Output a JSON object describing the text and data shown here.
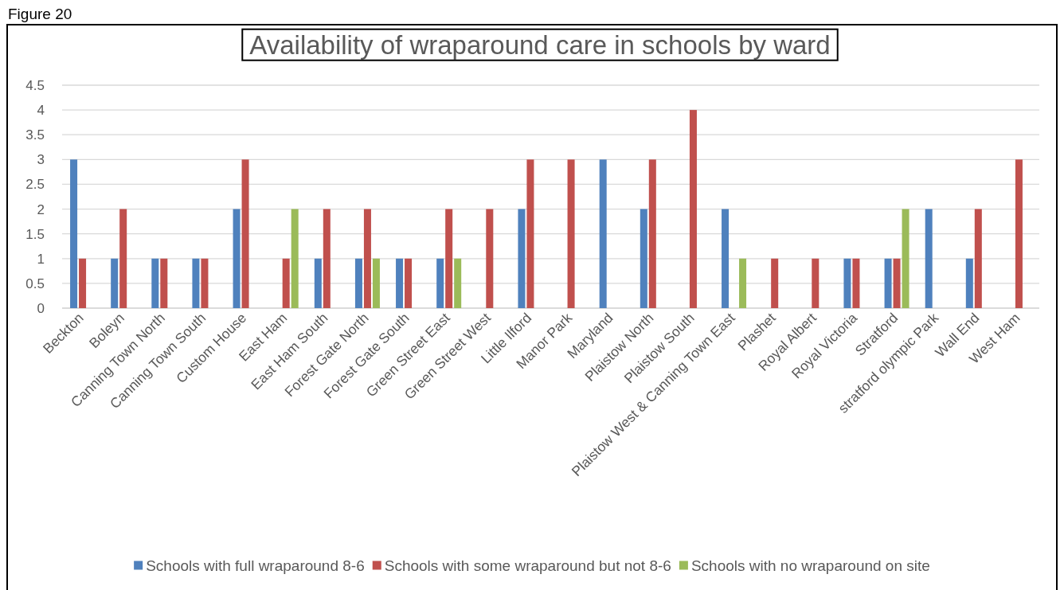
{
  "chart_data": {
    "type": "bar",
    "title": "Availability of wraparound care in schools by ward",
    "annotations": [
      "Figure 20"
    ],
    "categories": [
      "Beckton",
      "Boleyn",
      "Canning Town North",
      "Canning Town South",
      "Custom House",
      "East Ham",
      "East Ham South",
      "Forest Gate North",
      "Forest Gate South",
      "Green Street East",
      "Green Street West",
      "Little Ilford",
      "Manor Park",
      "Maryland",
      "Plaistow North",
      "Plaistow South",
      "Plaistow West & Canning Town East",
      "Plashet",
      "Royal Albert",
      "Royal Victoria",
      "Stratford",
      "stratford olympic Park",
      "Wall End",
      "West Ham"
    ],
    "series": [
      {
        "name": "Schools with full wraparound 8-6",
        "color": "#4f81bd",
        "values": [
          3,
          1,
          1,
          1,
          2,
          null,
          1,
          1,
          1,
          1,
          null,
          2,
          null,
          3,
          2,
          null,
          2,
          null,
          null,
          1,
          1,
          2,
          1,
          null
        ]
      },
      {
        "name": "Schools with some wraparound but not 8-6",
        "color": "#c0504d",
        "values": [
          1,
          2,
          1,
          1,
          3,
          1,
          2,
          2,
          1,
          2,
          2,
          3,
          3,
          null,
          3,
          4,
          null,
          1,
          1,
          1,
          1,
          null,
          2,
          3
        ]
      },
      {
        "name": "Schools with no wraparound on site",
        "color": "#9bbb59",
        "values": [
          null,
          null,
          null,
          null,
          null,
          2,
          null,
          1,
          null,
          1,
          null,
          null,
          null,
          null,
          null,
          null,
          1,
          null,
          null,
          null,
          2,
          null,
          null,
          null
        ]
      }
    ],
    "ylim": [
      0,
      4.5
    ],
    "yticks": [
      0,
      0.5,
      1,
      1.5,
      2,
      2.5,
      3,
      3.5,
      4,
      4.5
    ],
    "grid": "y",
    "legend": "bottom"
  }
}
